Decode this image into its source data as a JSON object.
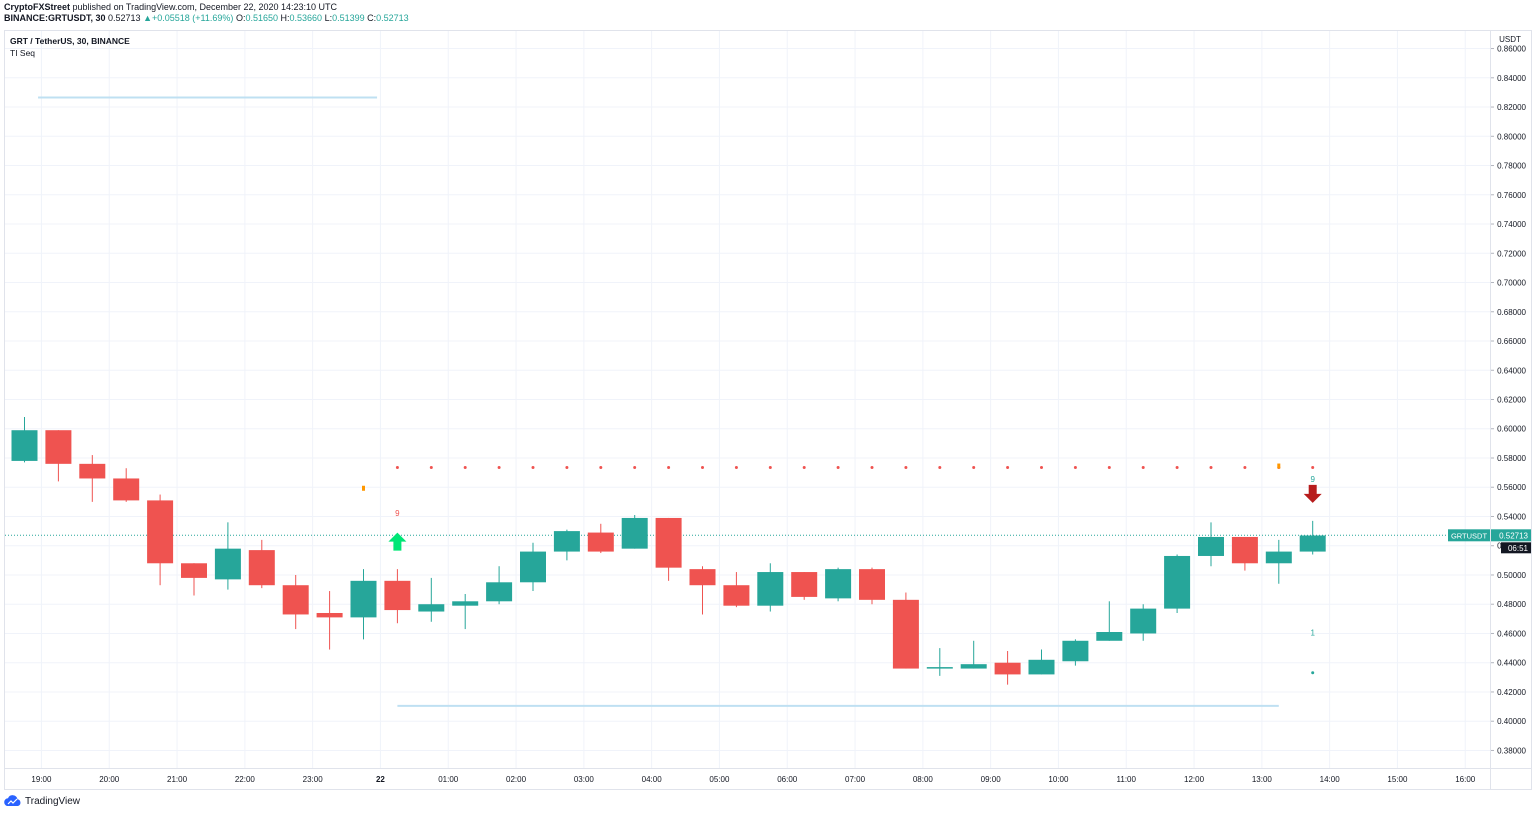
{
  "header": {
    "line1": {
      "author": "CryptoFXStreet",
      "text": "published on TradingView.com, December 22, 2020 14:23:10 UTC"
    },
    "line2": {
      "symbol": "BINANCE:GRTUSDT, 30",
      "last": "0.52713",
      "change": "+0.05518 (+11.69%)",
      "o_label": "O:",
      "o": "0.51650",
      "h_label": "H:",
      "h": "0.53660",
      "l_label": "L:",
      "l": "0.51399",
      "c_label": "C:",
      "c": "0.52713"
    }
  },
  "legend": {
    "title": "GRT / TetherUS, 30, BINANCE",
    "indicator": "TI Seq"
  },
  "footer": {
    "brand": "TradingView"
  },
  "colors": {
    "up": "#26a69a",
    "down": "#ef5350",
    "level": "#bfe0f2",
    "grid": "#f0f3fa",
    "price_tag": "#26a69a"
  },
  "chart_data": {
    "type": "candlestick",
    "symbol": "GRT / TetherUS, 30, BINANCE",
    "currency": "USDT",
    "ylim": [
      0.368,
      0.872
    ],
    "yticks": [
      "0.86000",
      "0.84000",
      "0.82000",
      "0.80000",
      "0.78000",
      "0.76000",
      "0.74000",
      "0.72000",
      "0.70000",
      "0.68000",
      "0.66000",
      "0.64000",
      "0.62000",
      "0.60000",
      "0.58000",
      "0.56000",
      "0.54000",
      "0.52000",
      "0.50000",
      "0.48000",
      "0.46000",
      "0.44000",
      "0.42000",
      "0.40000",
      "0.38000"
    ],
    "xticks": [
      {
        "label": "19:00",
        "index": 0.5
      },
      {
        "label": "20:00",
        "index": 2.5
      },
      {
        "label": "21:00",
        "index": 4.5
      },
      {
        "label": "22:00",
        "index": 6.5
      },
      {
        "label": "23:00",
        "index": 8.5
      },
      {
        "label": "22",
        "index": 10.5
      },
      {
        "label": "01:00",
        "index": 12.5
      },
      {
        "label": "02:00",
        "index": 14.5
      },
      {
        "label": "03:00",
        "index": 16.5
      },
      {
        "label": "04:00",
        "index": 18.5
      },
      {
        "label": "05:00",
        "index": 20.5
      },
      {
        "label": "06:00",
        "index": 22.5
      },
      {
        "label": "07:00",
        "index": 24.5
      },
      {
        "label": "08:00",
        "index": 26.5
      },
      {
        "label": "09:00",
        "index": 28.5
      },
      {
        "label": "10:00",
        "index": 30.5
      },
      {
        "label": "11:00",
        "index": 32.5
      },
      {
        "label": "12:00",
        "index": 34.5
      },
      {
        "label": "13:00",
        "index": 36.5
      },
      {
        "label": "14:00",
        "index": 38.5
      },
      {
        "label": "15:00",
        "index": 40.5
      },
      {
        "label": "16:00",
        "index": 42.5
      }
    ],
    "candles": [
      {
        "o": 0.578,
        "h": 0.608,
        "l": 0.577,
        "c": 0.599
      },
      {
        "o": 0.599,
        "h": 0.599,
        "l": 0.564,
        "c": 0.576
      },
      {
        "o": 0.576,
        "h": 0.582,
        "l": 0.55,
        "c": 0.566
      },
      {
        "o": 0.566,
        "h": 0.573,
        "l": 0.55,
        "c": 0.551
      },
      {
        "o": 0.551,
        "h": 0.555,
        "l": 0.493,
        "c": 0.508
      },
      {
        "o": 0.508,
        "h": 0.508,
        "l": 0.486,
        "c": 0.498
      },
      {
        "o": 0.497,
        "h": 0.536,
        "l": 0.49,
        "c": 0.518
      },
      {
        "o": 0.517,
        "h": 0.524,
        "l": 0.491,
        "c": 0.493
      },
      {
        "o": 0.493,
        "h": 0.5,
        "l": 0.463,
        "c": 0.473
      },
      {
        "o": 0.474,
        "h": 0.489,
        "l": 0.449,
        "c": 0.471
      },
      {
        "o": 0.471,
        "h": 0.504,
        "l": 0.456,
        "c": 0.496
      },
      {
        "o": 0.496,
        "h": 0.504,
        "l": 0.467,
        "c": 0.476
      },
      {
        "o": 0.475,
        "h": 0.498,
        "l": 0.468,
        "c": 0.48
      },
      {
        "o": 0.479,
        "h": 0.487,
        "l": 0.463,
        "c": 0.482
      },
      {
        "o": 0.482,
        "h": 0.506,
        "l": 0.48,
        "c": 0.495
      },
      {
        "o": 0.495,
        "h": 0.522,
        "l": 0.489,
        "c": 0.516
      },
      {
        "o": 0.516,
        "h": 0.531,
        "l": 0.51,
        "c": 0.53
      },
      {
        "o": 0.529,
        "h": 0.535,
        "l": 0.515,
        "c": 0.516
      },
      {
        "o": 0.518,
        "h": 0.541,
        "l": 0.518,
        "c": 0.539
      },
      {
        "o": 0.539,
        "h": 0.539,
        "l": 0.496,
        "c": 0.505
      },
      {
        "o": 0.504,
        "h": 0.506,
        "l": 0.473,
        "c": 0.493
      },
      {
        "o": 0.493,
        "h": 0.502,
        "l": 0.478,
        "c": 0.479
      },
      {
        "o": 0.479,
        "h": 0.508,
        "l": 0.475,
        "c": 0.502
      },
      {
        "o": 0.502,
        "h": 0.502,
        "l": 0.483,
        "c": 0.485
      },
      {
        "o": 0.484,
        "h": 0.505,
        "l": 0.482,
        "c": 0.504
      },
      {
        "o": 0.504,
        "h": 0.505,
        "l": 0.48,
        "c": 0.483
      },
      {
        "o": 0.483,
        "h": 0.488,
        "l": 0.436,
        "c": 0.436
      },
      {
        "o": 0.436,
        "h": 0.45,
        "l": 0.431,
        "c": 0.437
      },
      {
        "o": 0.436,
        "h": 0.455,
        "l": 0.436,
        "c": 0.439
      },
      {
        "o": 0.44,
        "h": 0.448,
        "l": 0.425,
        "c": 0.432
      },
      {
        "o": 0.432,
        "h": 0.449,
        "l": 0.432,
        "c": 0.442
      },
      {
        "o": 0.441,
        "h": 0.456,
        "l": 0.438,
        "c": 0.455
      },
      {
        "o": 0.455,
        "h": 0.482,
        "l": 0.455,
        "c": 0.461
      },
      {
        "o": 0.46,
        "h": 0.48,
        "l": 0.455,
        "c": 0.477
      },
      {
        "o": 0.477,
        "h": 0.514,
        "l": 0.474,
        "c": 0.513
      },
      {
        "o": 0.513,
        "h": 0.536,
        "l": 0.506,
        "c": 0.526
      },
      {
        "o": 0.526,
        "h": 0.526,
        "l": 0.503,
        "c": 0.508
      },
      {
        "o": 0.508,
        "h": 0.524,
        "l": 0.494,
        "c": 0.516
      },
      {
        "o": 0.516,
        "h": 0.537,
        "l": 0.514,
        "c": 0.527
      }
    ],
    "levels": [
      {
        "price": 0.8265,
        "from_index": 0.4,
        "to_index": 10.4
      },
      {
        "price": 0.4105,
        "from_index": 11.0,
        "to_index": 37.0
      }
    ],
    "resistance_dots": {
      "price": 0.5735,
      "from_index": 11,
      "to_index": 38
    },
    "seq_labels": [
      {
        "index": 11,
        "text": "9",
        "price": 0.5425,
        "color": "#ef5350"
      },
      {
        "index": 38,
        "text": "9",
        "price": 0.5655,
        "color": "#26a69a"
      },
      {
        "index": 38,
        "text": "1",
        "price": 0.4606,
        "color": "#26a69a"
      }
    ],
    "signals": [
      {
        "index": 11,
        "direction": "up",
        "price": 0.5228,
        "color": "#00e676"
      },
      {
        "index": 38,
        "direction": "down",
        "price": 0.5555,
        "color": "#b71c1c"
      }
    ],
    "support_dot": {
      "index": 38,
      "price": 0.4331
    },
    "small_markers": [
      {
        "index": 10,
        "price": 0.5593,
        "color": "#ff9800"
      },
      {
        "index": 37,
        "price": 0.5745,
        "color": "#ff9800"
      }
    ],
    "last_price": {
      "symbol": "GRTUSDT",
      "value": "0.52713",
      "countdown": "06:51"
    }
  }
}
